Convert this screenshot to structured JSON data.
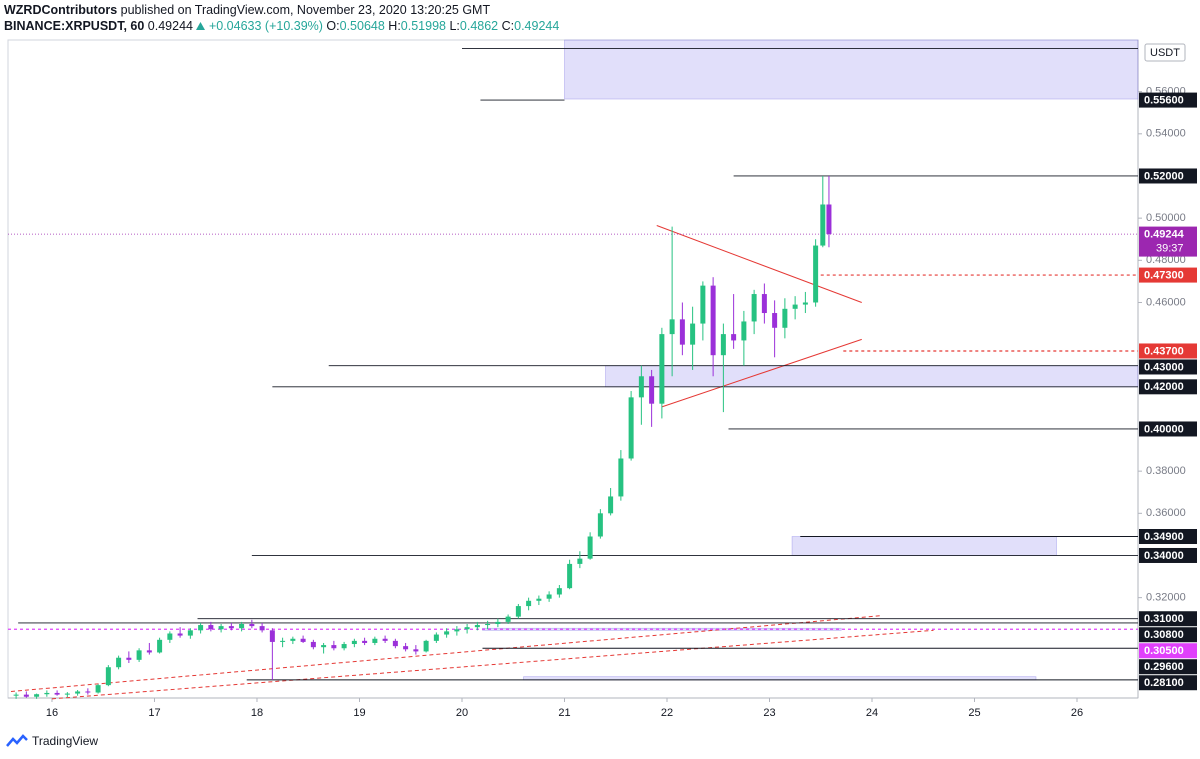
{
  "header": {
    "author": "WZRDContributors",
    "published": "published on TradingView.com, November 23, 2020 13:20:25 GMT",
    "symbol": "BINANCE:XRPUSDT, 60",
    "last": 0.49244,
    "change": "+0.04633 (+10.39%)",
    "ohlc": [
      {
        "label": "O:",
        "value": 0.50648
      },
      {
        "label": "H:",
        "value": 0.51998
      },
      {
        "label": "L:",
        "value": 0.4862
      },
      {
        "label": "C:",
        "value": 0.49244
      }
    ]
  },
  "footer": {
    "brand": "TradingView"
  },
  "chart_data": {
    "type": "candlestick",
    "currency": "USDT",
    "countdown": "39:37",
    "up_color": "#26c281",
    "down_color": "#9b30d9",
    "xlim": [
      15.571,
      26.595
    ],
    "ylim": [
      0.2724,
      0.5845
    ],
    "xticks": [
      16,
      17,
      18,
      19,
      20,
      21,
      22,
      23,
      24,
      25,
      26
    ],
    "yticks": [
      {
        "value": 0.32,
        "label": "0.32000"
      },
      {
        "value": 0.36,
        "label": "0.36000"
      },
      {
        "value": 0.38,
        "label": "0.38000"
      },
      {
        "value": 0.46,
        "label": "0.46000"
      },
      {
        "value": 0.48,
        "label": "0.48000"
      },
      {
        "value": 0.5,
        "label": "0.50000"
      },
      {
        "value": 0.54,
        "label": "0.54000"
      },
      {
        "value": 0.56,
        "label": "0.56000"
      }
    ],
    "price_line": {
      "value": 0.49244,
      "color": "#9c27b0"
    },
    "levels": [
      {
        "value": 0.5805,
        "from": 20.0,
        "color": "#131722"
      },
      {
        "value": 0.556,
        "label": "0.55600",
        "from": 20.18,
        "to": 21.0,
        "color": "#131722"
      },
      {
        "value": 0.52,
        "label": "0.52000",
        "from": 22.65,
        "color": "#131722"
      },
      {
        "value": 0.473,
        "label": "0.47300",
        "from": 23.5,
        "color": "#e53935",
        "dash": true
      },
      {
        "value": 0.437,
        "label": "0.43700",
        "from": 23.72,
        "color": "#e53935",
        "dash": true
      },
      {
        "value": 0.43,
        "label": "0.43000",
        "from": 18.7,
        "color": "#131722"
      },
      {
        "value": 0.42,
        "label": "0.42000",
        "from": 18.15,
        "color": "#131722"
      },
      {
        "value": 0.4,
        "label": "0.40000",
        "from": 22.6,
        "color": "#131722"
      },
      {
        "value": 0.349,
        "label": "0.34900",
        "from": 23.3,
        "color": "#131722"
      },
      {
        "value": 0.34,
        "label": "0.34000",
        "from": 17.95,
        "color": "#131722"
      },
      {
        "value": 0.31,
        "label": "0.31000",
        "from": 17.42,
        "color": "#131722"
      },
      {
        "value": 0.308,
        "label": "0.30800",
        "from": 15.67,
        "color": "#131722"
      },
      {
        "value": 0.305,
        "label": "0.30500",
        "from": 15.571,
        "color": "#e040fb",
        "dash": true
      },
      {
        "value": 0.296,
        "label": "0.29600",
        "from": 20.2,
        "color": "#131722"
      },
      {
        "value": 0.281,
        "label": "0.28100",
        "from": 17.9,
        "color": "#131722"
      }
    ],
    "zones": [
      {
        "x": [
          21.0,
          26.595
        ],
        "y": [
          0.5565,
          0.5845
        ]
      },
      {
        "x": [
          21.4,
          26.595
        ],
        "y": [
          0.42,
          0.43
        ]
      },
      {
        "x": [
          23.22,
          25.8
        ],
        "y": [
          0.34,
          0.349
        ]
      },
      {
        "x": [
          20.2,
          23.7
        ],
        "y": [
          0.3045,
          0.3055
        ]
      },
      {
        "x": [
          20.6,
          25.6
        ],
        "y": [
          0.281,
          0.2825
        ]
      }
    ],
    "trendlines": [
      {
        "x": [
          21.9,
          23.9
        ],
        "y": [
          0.4965,
          0.46
        ],
        "color": "#e53935"
      },
      {
        "x": [
          21.95,
          23.9
        ],
        "y": [
          0.4105,
          0.4425
        ],
        "color": "#e53935"
      },
      {
        "x": [
          15.6,
          24.1
        ],
        "y": [
          0.2755,
          0.3115
        ],
        "color": "#e53935",
        "dash": true
      },
      {
        "x": [
          16.0,
          24.6
        ],
        "y": [
          0.272,
          0.3045
        ],
        "color": "#e53935",
        "dash": true
      }
    ],
    "x": [
      15.65,
      15.75,
      15.85,
      15.95,
      16.05,
      16.15,
      16.25,
      16.35,
      16.45,
      16.55,
      16.65,
      16.75,
      16.85,
      16.95,
      17.05,
      17.15,
      17.25,
      17.35,
      17.45,
      17.55,
      17.65,
      17.75,
      17.85,
      17.95,
      18.05,
      18.15,
      18.25,
      18.35,
      18.45,
      18.55,
      18.65,
      18.75,
      18.85,
      18.95,
      19.05,
      19.15,
      19.25,
      19.35,
      19.45,
      19.55,
      19.65,
      19.75,
      19.85,
      19.95,
      20.05,
      20.15,
      20.25,
      20.35,
      20.45,
      20.55,
      20.65,
      20.75,
      20.85,
      20.95,
      21.05,
      21.15,
      21.25,
      21.35,
      21.45,
      21.55,
      21.65,
      21.75,
      21.85,
      21.95,
      22.05,
      22.15,
      22.25,
      22.35,
      22.45,
      22.55,
      22.65,
      22.75,
      22.85,
      22.95,
      23.05,
      23.15,
      23.25,
      23.35,
      23.45,
      23.52,
      23.58
    ],
    "open": [
      0.2735,
      0.274,
      0.273,
      0.2742,
      0.2748,
      0.274,
      0.2745,
      0.2755,
      0.275,
      0.2785,
      0.287,
      0.2915,
      0.2905,
      0.295,
      0.294,
      0.3,
      0.303,
      0.302,
      0.3045,
      0.307,
      0.305,
      0.3065,
      0.3055,
      0.3075,
      0.3065,
      0.3045,
      0.299,
      0.2995,
      0.3005,
      0.299,
      0.2965,
      0.2975,
      0.296,
      0.298,
      0.2995,
      0.2985,
      0.3005,
      0.2995,
      0.297,
      0.2955,
      0.2945,
      0.2995,
      0.3025,
      0.304,
      0.305,
      0.306,
      0.307,
      0.3075,
      0.3085,
      0.311,
      0.316,
      0.3185,
      0.3195,
      0.3215,
      0.3245,
      0.336,
      0.3385,
      0.349,
      0.36,
      0.368,
      0.386,
      0.415,
      0.425,
      0.412,
      0.445,
      0.452,
      0.44,
      0.45,
      0.468,
      0.435,
      0.445,
      0.442,
      0.451,
      0.464,
      0.455,
      0.448,
      0.457,
      0.459,
      0.46,
      0.487,
      0.50648
    ],
    "high": [
      0.275,
      0.2755,
      0.2745,
      0.276,
      0.276,
      0.2752,
      0.2762,
      0.277,
      0.279,
      0.288,
      0.2925,
      0.2945,
      0.296,
      0.2985,
      0.301,
      0.304,
      0.306,
      0.3055,
      0.308,
      0.3085,
      0.3075,
      0.308,
      0.3085,
      0.3095,
      0.308,
      0.3055,
      0.301,
      0.3015,
      0.302,
      0.3,
      0.2985,
      0.2995,
      0.299,
      0.3005,
      0.301,
      0.3015,
      0.302,
      0.3005,
      0.2985,
      0.2975,
      0.3,
      0.3035,
      0.3055,
      0.3065,
      0.3075,
      0.3085,
      0.309,
      0.31,
      0.312,
      0.317,
      0.32,
      0.321,
      0.323,
      0.326,
      0.338,
      0.342,
      0.351,
      0.362,
      0.372,
      0.39,
      0.418,
      0.43,
      0.428,
      0.448,
      0.496,
      0.46,
      0.458,
      0.47,
      0.472,
      0.45,
      0.464,
      0.456,
      0.466,
      0.469,
      0.461,
      0.462,
      0.463,
      0.465,
      0.49,
      0.52,
      0.51998
    ],
    "low": [
      0.272,
      0.2725,
      0.272,
      0.273,
      0.2735,
      0.2728,
      0.2735,
      0.274,
      0.2745,
      0.278,
      0.286,
      0.289,
      0.2895,
      0.293,
      0.2935,
      0.2985,
      0.301,
      0.3005,
      0.303,
      0.304,
      0.3035,
      0.3045,
      0.304,
      0.3055,
      0.3035,
      0.281,
      0.2965,
      0.298,
      0.2985,
      0.2955,
      0.2935,
      0.295,
      0.295,
      0.2965,
      0.2975,
      0.2975,
      0.2985,
      0.296,
      0.2945,
      0.293,
      0.294,
      0.2985,
      0.301,
      0.302,
      0.303,
      0.3045,
      0.305,
      0.306,
      0.3075,
      0.31,
      0.314,
      0.3165,
      0.318,
      0.32,
      0.324,
      0.334,
      0.338,
      0.348,
      0.359,
      0.366,
      0.385,
      0.402,
      0.401,
      0.405,
      0.425,
      0.435,
      0.428,
      0.442,
      0.425,
      0.408,
      0.438,
      0.43,
      0.445,
      0.45,
      0.434,
      0.443,
      0.452,
      0.455,
      0.458,
      0.4862,
      0.4862
    ],
    "close": [
      0.274,
      0.273,
      0.2742,
      0.2748,
      0.274,
      0.2745,
      0.2755,
      0.275,
      0.2785,
      0.287,
      0.2915,
      0.2905,
      0.295,
      0.294,
      0.3,
      0.303,
      0.302,
      0.3045,
      0.307,
      0.305,
      0.3065,
      0.3055,
      0.3075,
      0.3065,
      0.3045,
      0.299,
      0.2995,
      0.3005,
      0.299,
      0.2965,
      0.2975,
      0.296,
      0.298,
      0.2995,
      0.2985,
      0.3005,
      0.2995,
      0.297,
      0.2955,
      0.2945,
      0.2995,
      0.3025,
      0.304,
      0.305,
      0.306,
      0.307,
      0.3075,
      0.3085,
      0.311,
      0.316,
      0.3185,
      0.3195,
      0.3215,
      0.3245,
      0.336,
      0.3385,
      0.349,
      0.36,
      0.368,
      0.386,
      0.415,
      0.425,
      0.412,
      0.445,
      0.452,
      0.44,
      0.45,
      0.468,
      0.435,
      0.445,
      0.442,
      0.451,
      0.464,
      0.455,
      0.448,
      0.457,
      0.459,
      0.46,
      0.487,
      0.50648,
      0.49244
    ]
  }
}
